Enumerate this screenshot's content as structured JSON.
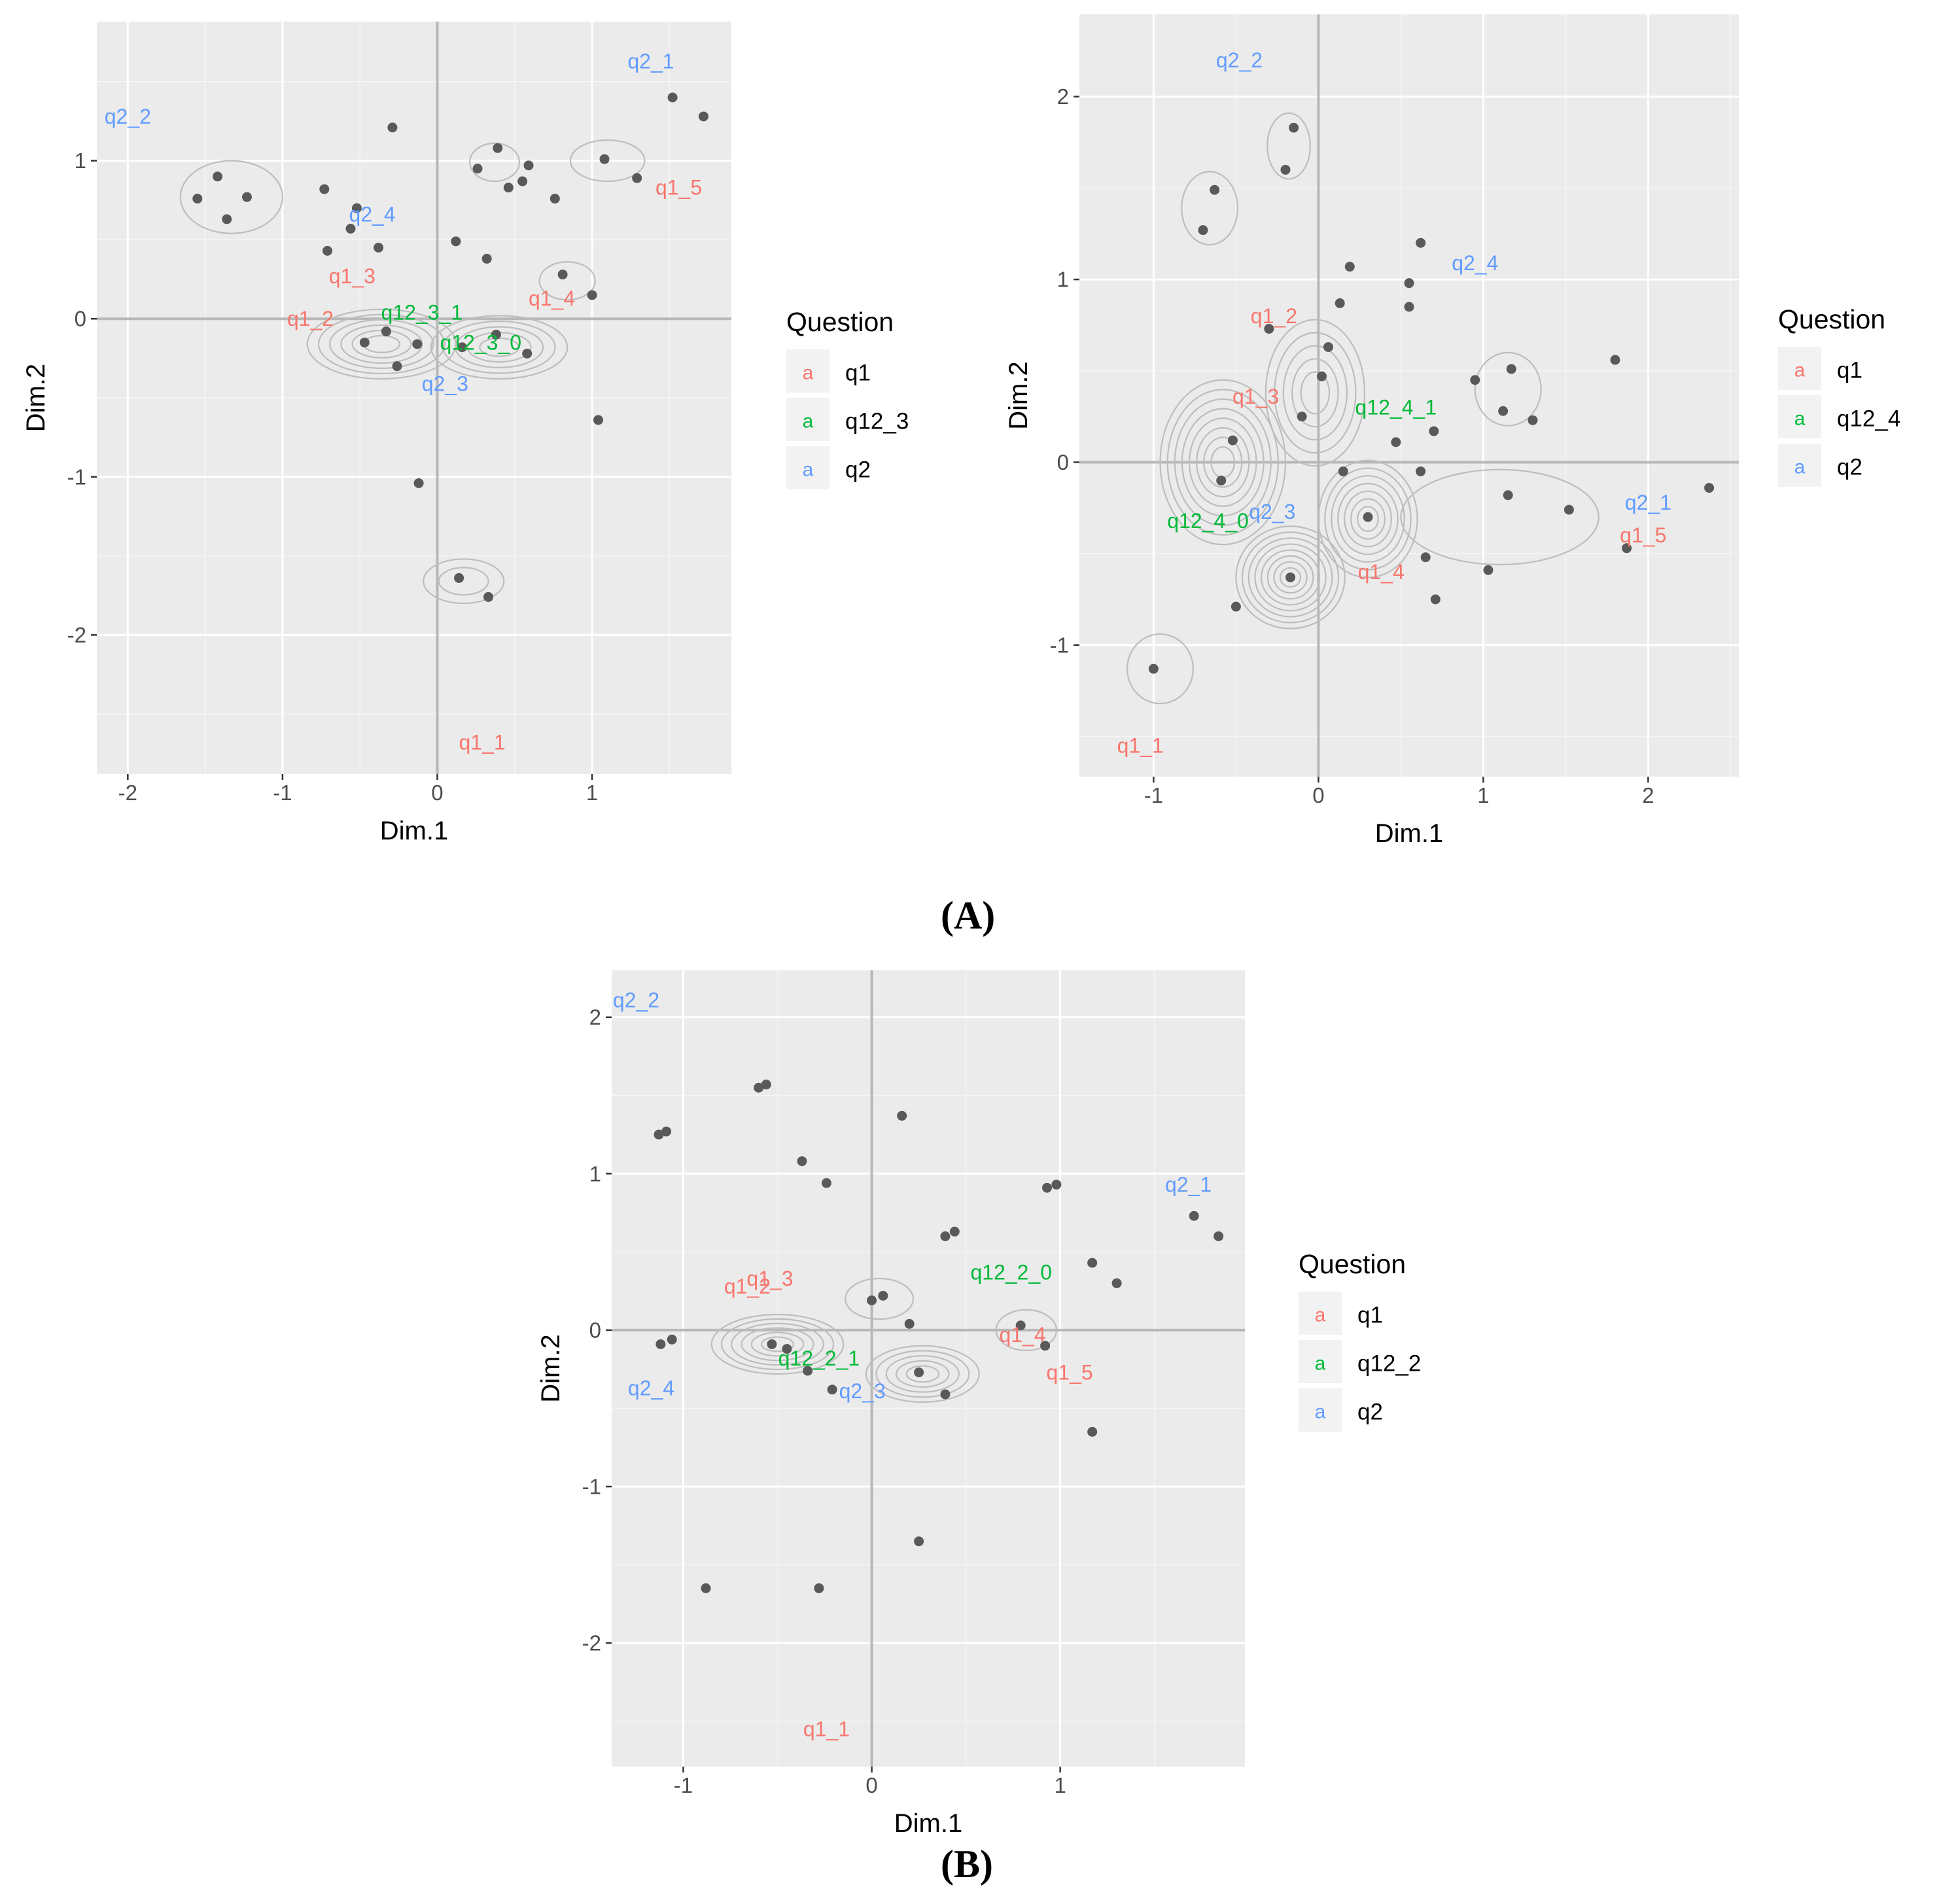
{
  "figure": {
    "caption_a": "(A)",
    "caption_b": "(B)"
  },
  "colors": {
    "panel": "#EBEBEB",
    "grid_major": "#FFFFFF",
    "axis_line": "#B8B8B8",
    "point": "#595959",
    "contour": "#BDBDBD",
    "q1": "#F8766D",
    "q12": "#00BA38",
    "q2": "#619CFF"
  },
  "chart_data": [
    {
      "id": "A1",
      "type": "scatter",
      "xlabel": "Dim.1",
      "ylabel": "Dim.2",
      "xlim": [
        -2.2,
        1.9
      ],
      "ylim": [
        -2.88,
        1.88
      ],
      "xticks": [
        -2,
        -1,
        0,
        1
      ],
      "xtick_labels": [
        "-2",
        "-1",
        "0",
        "1"
      ],
      "yticks": [
        -2,
        -1,
        0,
        1
      ],
      "ytick_labels": [
        "-2",
        "-1",
        "0",
        "1"
      ],
      "legend": {
        "title": "Question",
        "glyph": "a",
        "entries": [
          {
            "label": "q1",
            "color_key": "q1"
          },
          {
            "label": "q12_3",
            "color_key": "q12"
          },
          {
            "label": "q2",
            "color_key": "q2"
          }
        ]
      },
      "points": [
        [
          -1.55,
          0.76
        ],
        [
          -1.42,
          0.9
        ],
        [
          -1.36,
          0.63
        ],
        [
          -1.23,
          0.77
        ],
        [
          -0.73,
          0.82
        ],
        [
          -0.71,
          0.43
        ],
        [
          -0.56,
          0.57
        ],
        [
          -0.52,
          0.7
        ],
        [
          -0.38,
          0.45
        ],
        [
          -0.29,
          1.21
        ],
        [
          0.12,
          0.49
        ],
        [
          0.26,
          0.95
        ],
        [
          0.32,
          0.38
        ],
        [
          0.39,
          1.08
        ],
        [
          0.46,
          0.83
        ],
        [
          0.55,
          0.87
        ],
        [
          0.59,
          0.97
        ],
        [
          0.76,
          0.76
        ],
        [
          0.81,
          0.28
        ],
        [
          1.0,
          0.15
        ],
        [
          1.08,
          1.01
        ],
        [
          1.29,
          0.89
        ],
        [
          1.52,
          1.4
        ],
        [
          1.72,
          1.28
        ],
        [
          -0.47,
          -0.15
        ],
        [
          -0.33,
          -0.08
        ],
        [
          -0.26,
          -0.3
        ],
        [
          -0.13,
          -0.16
        ],
        [
          0.16,
          -0.18
        ],
        [
          0.38,
          -0.1
        ],
        [
          0.58,
          -0.22
        ],
        [
          1.04,
          -0.64
        ],
        [
          -0.12,
          -1.04
        ],
        [
          0.14,
          -1.64
        ],
        [
          0.33,
          -1.76
        ]
      ],
      "labels": [
        {
          "text": "q2_1",
          "x": 1.38,
          "y": 1.63,
          "color_key": "q2"
        },
        {
          "text": "q2_2",
          "x": -2.0,
          "y": 1.28,
          "color_key": "q2"
        },
        {
          "text": "q1_5",
          "x": 1.56,
          "y": 0.83,
          "color_key": "q1"
        },
        {
          "text": "q2_4",
          "x": -0.42,
          "y": 0.66,
          "color_key": "q2"
        },
        {
          "text": "q1_3",
          "x": -0.55,
          "y": 0.27,
          "color_key": "q1"
        },
        {
          "text": "q1_4",
          "x": 0.74,
          "y": 0.13,
          "color_key": "q1"
        },
        {
          "text": "q12_3_1",
          "x": -0.1,
          "y": 0.04,
          "color_key": "q12"
        },
        {
          "text": "q1_2",
          "x": -0.82,
          "y": 0.0,
          "color_key": "q1"
        },
        {
          "text": "q12_3_0",
          "x": 0.28,
          "y": -0.15,
          "color_key": "q12"
        },
        {
          "text": "q2_3",
          "x": 0.05,
          "y": -0.41,
          "color_key": "q2"
        },
        {
          "text": "q1_1",
          "x": 0.29,
          "y": -2.68,
          "color_key": "q1"
        }
      ],
      "density": [
        {
          "cx": -1.33,
          "cy": 0.77,
          "rx": 0.33,
          "ry": 0.23,
          "n": 1
        },
        {
          "cx": 0.37,
          "cy": 0.99,
          "rx": 0.16,
          "ry": 0.12,
          "n": 1
        },
        {
          "cx": 1.1,
          "cy": 1.0,
          "rx": 0.24,
          "ry": 0.13,
          "n": 1
        },
        {
          "cx": 0.84,
          "cy": 0.24,
          "rx": 0.18,
          "ry": 0.12,
          "n": 1
        },
        {
          "cx": 0.17,
          "cy": -1.66,
          "rx": 0.26,
          "ry": 0.14,
          "n": 2
        },
        {
          "cx": -0.36,
          "cy": -0.16,
          "rx": 0.48,
          "ry": 0.22,
          "n": 6
        },
        {
          "cx": 0.4,
          "cy": -0.18,
          "rx": 0.44,
          "ry": 0.2,
          "n": 5
        }
      ]
    },
    {
      "id": "A2",
      "type": "scatter",
      "xlabel": "Dim.1",
      "ylabel": "Dim.2",
      "xlim": [
        -1.45,
        2.55
      ],
      "ylim": [
        -1.72,
        2.45
      ],
      "xticks": [
        -1,
        0,
        1,
        2
      ],
      "xtick_labels": [
        "-1",
        "0",
        "1",
        "2"
      ],
      "yticks": [
        -1,
        0,
        1,
        2
      ],
      "ytick_labels": [
        "-1",
        "0",
        "1",
        "2"
      ],
      "legend": {
        "title": "Question",
        "glyph": "a",
        "entries": [
          {
            "label": "q1",
            "color_key": "q1"
          },
          {
            "label": "q12_4",
            "color_key": "q12"
          },
          {
            "label": "q2",
            "color_key": "q2"
          }
        ]
      },
      "points": [
        [
          -0.63,
          1.49
        ],
        [
          -0.7,
          1.27
        ],
        [
          -0.15,
          1.83
        ],
        [
          -0.2,
          1.6
        ],
        [
          0.19,
          1.07
        ],
        [
          0.13,
          0.87
        ],
        [
          -0.3,
          0.73
        ],
        [
          0.02,
          0.47
        ],
        [
          0.06,
          0.63
        ],
        [
          -0.1,
          0.25
        ],
        [
          0.55,
          0.98
        ],
        [
          0.55,
          0.85
        ],
        [
          0.62,
          1.2
        ],
        [
          0.95,
          0.45
        ],
        [
          1.17,
          0.51
        ],
        [
          1.12,
          0.28
        ],
        [
          1.3,
          0.23
        ],
        [
          1.8,
          0.56
        ],
        [
          0.7,
          0.17
        ],
        [
          0.47,
          0.11
        ],
        [
          -0.52,
          0.12
        ],
        [
          -0.59,
          -0.1
        ],
        [
          0.15,
          -0.05
        ],
        [
          0.3,
          -0.3
        ],
        [
          0.62,
          -0.05
        ],
        [
          1.15,
          -0.18
        ],
        [
          1.52,
          -0.26
        ],
        [
          2.37,
          -0.14
        ],
        [
          -0.17,
          -0.63
        ],
        [
          -0.5,
          -0.79
        ],
        [
          0.65,
          -0.52
        ],
        [
          0.71,
          -0.75
        ],
        [
          1.03,
          -0.59
        ],
        [
          1.87,
          -0.47
        ],
        [
          -1.0,
          -1.13
        ]
      ],
      "labels": [
        {
          "text": "q2_2",
          "x": -0.48,
          "y": 2.2,
          "color_key": "q2"
        },
        {
          "text": "q2_4",
          "x": 0.95,
          "y": 1.09,
          "color_key": "q2"
        },
        {
          "text": "q1_2",
          "x": -0.27,
          "y": 0.8,
          "color_key": "q1"
        },
        {
          "text": "q1_3",
          "x": -0.38,
          "y": 0.36,
          "color_key": "q1"
        },
        {
          "text": "q12_4_1",
          "x": 0.47,
          "y": 0.3,
          "color_key": "q12"
        },
        {
          "text": "q2_1",
          "x": 2.0,
          "y": -0.22,
          "color_key": "q2"
        },
        {
          "text": "q1_5",
          "x": 1.97,
          "y": -0.4,
          "color_key": "q1"
        },
        {
          "text": "q2_3",
          "x": -0.28,
          "y": -0.27,
          "color_key": "q2"
        },
        {
          "text": "q12_4_0",
          "x": -0.67,
          "y": -0.32,
          "color_key": "q12"
        },
        {
          "text": "q1_4",
          "x": 0.38,
          "y": -0.6,
          "color_key": "q1"
        },
        {
          "text": "q1_1",
          "x": -1.08,
          "y": -1.55,
          "color_key": "q1"
        }
      ],
      "density": [
        {
          "cx": -0.66,
          "cy": 1.39,
          "rx": 0.17,
          "ry": 0.2,
          "n": 1
        },
        {
          "cx": -0.18,
          "cy": 1.73,
          "rx": 0.13,
          "ry": 0.18,
          "n": 1
        },
        {
          "cx": 1.15,
          "cy": 0.4,
          "rx": 0.2,
          "ry": 0.2,
          "n": 1
        },
        {
          "cx": -0.96,
          "cy": -1.13,
          "rx": 0.2,
          "ry": 0.19,
          "n": 1
        },
        {
          "cx": -0.58,
          "cy": 0.0,
          "rx": 0.38,
          "ry": 0.45,
          "n": 8
        },
        {
          "cx": -0.02,
          "cy": 0.38,
          "rx": 0.3,
          "ry": 0.4,
          "n": 5
        },
        {
          "cx": 0.3,
          "cy": -0.31,
          "rx": 0.3,
          "ry": 0.32,
          "n": 7
        },
        {
          "cx": -0.17,
          "cy": -0.63,
          "rx": 0.33,
          "ry": 0.28,
          "n": 8
        },
        {
          "cx": 1.1,
          "cy": -0.3,
          "rx": 0.6,
          "ry": 0.26,
          "n": 1
        }
      ]
    },
    {
      "id": "B",
      "type": "scatter",
      "xlabel": "Dim.1",
      "ylabel": "Dim.2",
      "xlim": [
        -1.38,
        1.98
      ],
      "ylim": [
        -2.79,
        2.3
      ],
      "xticks": [
        -1,
        0,
        1
      ],
      "xtick_labels": [
        "-1",
        "0",
        "1"
      ],
      "yticks": [
        -2,
        -1,
        0,
        1,
        2
      ],
      "ytick_labels": [
        "-2",
        "-1",
        "0",
        "1",
        "2"
      ],
      "legend": {
        "title": "Question",
        "glyph": "a",
        "entries": [
          {
            "label": "q1",
            "color_key": "q1"
          },
          {
            "label": "q12_2",
            "color_key": "q12"
          },
          {
            "label": "q2",
            "color_key": "q2"
          }
        ]
      },
      "points": [
        [
          -0.6,
          1.55
        ],
        [
          -0.56,
          1.57
        ],
        [
          -1.13,
          1.25
        ],
        [
          -1.09,
          1.27
        ],
        [
          -0.37,
          1.08
        ],
        [
          -0.24,
          0.94
        ],
        [
          0.16,
          1.37
        ],
        [
          0.39,
          0.6
        ],
        [
          0.44,
          0.63
        ],
        [
          0.93,
          0.91
        ],
        [
          0.98,
          0.93
        ],
        [
          1.71,
          0.73
        ],
        [
          1.84,
          0.6
        ],
        [
          1.17,
          0.43
        ],
        [
          1.3,
          0.3
        ],
        [
          0.0,
          0.19
        ],
        [
          0.06,
          0.22
        ],
        [
          0.2,
          0.04
        ],
        [
          0.79,
          0.03
        ],
        [
          0.92,
          -0.1
        ],
        [
          -1.12,
          -0.09
        ],
        [
          -1.06,
          -0.06
        ],
        [
          -0.53,
          -0.09
        ],
        [
          -0.45,
          -0.12
        ],
        [
          -0.34,
          -0.26
        ],
        [
          -0.21,
          -0.38
        ],
        [
          0.25,
          -0.27
        ],
        [
          0.39,
          -0.41
        ],
        [
          1.17,
          -0.65
        ],
        [
          0.25,
          -1.35
        ],
        [
          -0.88,
          -1.65
        ],
        [
          -0.28,
          -1.65
        ]
      ],
      "labels": [
        {
          "text": "q2_2",
          "x": -1.25,
          "y": 2.11,
          "color_key": "q2"
        },
        {
          "text": "q2_1",
          "x": 1.68,
          "y": 0.93,
          "color_key": "q2"
        },
        {
          "text": "q12_2_0",
          "x": 0.74,
          "y": 0.37,
          "color_key": "q12"
        },
        {
          "text": "q1_2",
          "x": -0.66,
          "y": 0.28,
          "color_key": "q1"
        },
        {
          "text": "q1_3",
          "x": -0.54,
          "y": 0.33,
          "color_key": "q1"
        },
        {
          "text": "q1_4",
          "x": 0.8,
          "y": -0.03,
          "color_key": "q1"
        },
        {
          "text": "q1_5",
          "x": 1.05,
          "y": -0.27,
          "color_key": "q1"
        },
        {
          "text": "q12_2_1",
          "x": -0.28,
          "y": -0.18,
          "color_key": "q12"
        },
        {
          "text": "q2_4",
          "x": -1.17,
          "y": -0.37,
          "color_key": "q2"
        },
        {
          "text": "q2_3",
          "x": -0.05,
          "y": -0.39,
          "color_key": "q2"
        },
        {
          "text": "q1_1",
          "x": -0.24,
          "y": -2.55,
          "color_key": "q1"
        }
      ],
      "density": [
        {
          "cx": 0.04,
          "cy": 0.2,
          "rx": 0.18,
          "ry": 0.13,
          "n": 1
        },
        {
          "cx": 0.82,
          "cy": 0.0,
          "rx": 0.16,
          "ry": 0.13,
          "n": 1
        },
        {
          "cx": -0.5,
          "cy": -0.09,
          "rx": 0.35,
          "ry": 0.19,
          "n": 6
        },
        {
          "cx": 0.27,
          "cy": -0.28,
          "rx": 0.3,
          "ry": 0.18,
          "n": 5
        }
      ]
    }
  ]
}
